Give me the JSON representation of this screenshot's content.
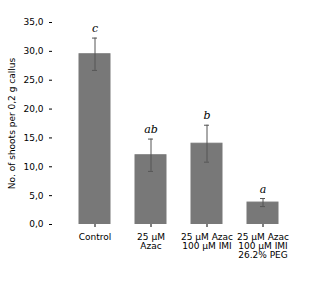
{
  "chart_data": {
    "type": "bar",
    "categories": [
      "Control",
      "25 μM\nAzac",
      "25 μM Azac\n100 μM IMI",
      "25 μM Azac\n100 μM IMI\n26.2% PEG"
    ],
    "values": [
      29.5,
      12.0,
      14.0,
      3.8
    ],
    "errors": [
      2.8,
      2.8,
      3.2,
      0.7
    ],
    "color": "#787878",
    "ylabel": "No. of shoots per 0,2 g callus",
    "ylim": [
      0,
      35
    ],
    "yticks": [
      {
        "value": 0.0,
        "label": "0,0"
      },
      {
        "value": 5.0,
        "label": "5,0"
      },
      {
        "value": 10.0,
        "label": "10,0"
      },
      {
        "value": 15.0,
        "label": "15,0"
      },
      {
        "value": 20.0,
        "label": "20,0"
      },
      {
        "value": 25.0,
        "label": "25,0"
      },
      {
        "value": 30.0,
        "label": "30,0"
      },
      {
        "value": 35.0,
        "label": "35,0"
      }
    ],
    "annotations": [
      "c",
      "ab",
      "b",
      "a"
    ]
  }
}
